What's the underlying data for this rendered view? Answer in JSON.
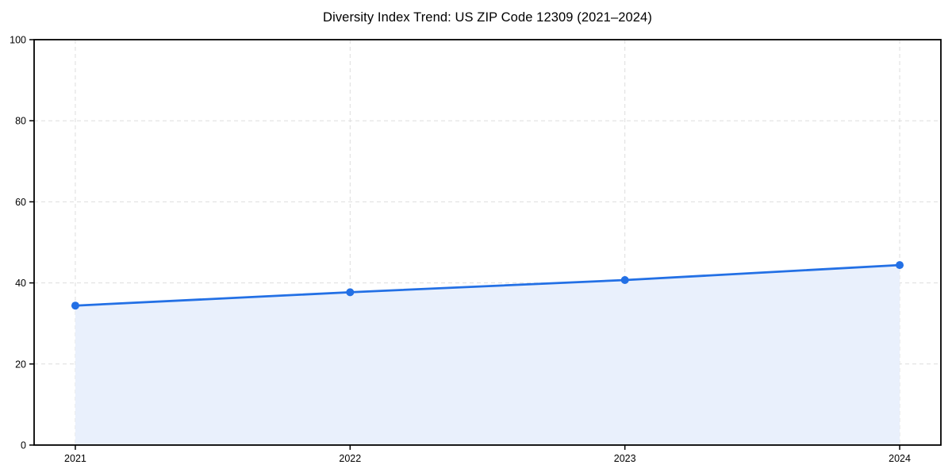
{
  "chart_data": {
    "type": "line",
    "title": "Diversity Index Trend: US ZIP Code 12309 (2021–2024)",
    "categories": [
      "2021",
      "2022",
      "2023",
      "2024"
    ],
    "series": [
      {
        "name": "Diversity Index",
        "values": [
          34.4,
          37.7,
          40.7,
          44.4
        ]
      }
    ],
    "xlabel": "",
    "ylabel": "",
    "ylim": [
      0,
      100
    ],
    "yticks": [
      0,
      20,
      40,
      60,
      80,
      100
    ],
    "grid": "dashed both axes",
    "legend_position": "none",
    "area_fill_to_zero": true,
    "colors": {
      "line": "#2370e5",
      "marker": "#2370e5",
      "area": "#e9f0fc",
      "grid": "#dddddd",
      "axis": "#000000",
      "text": "#000000",
      "background": "#ffffff"
    }
  }
}
